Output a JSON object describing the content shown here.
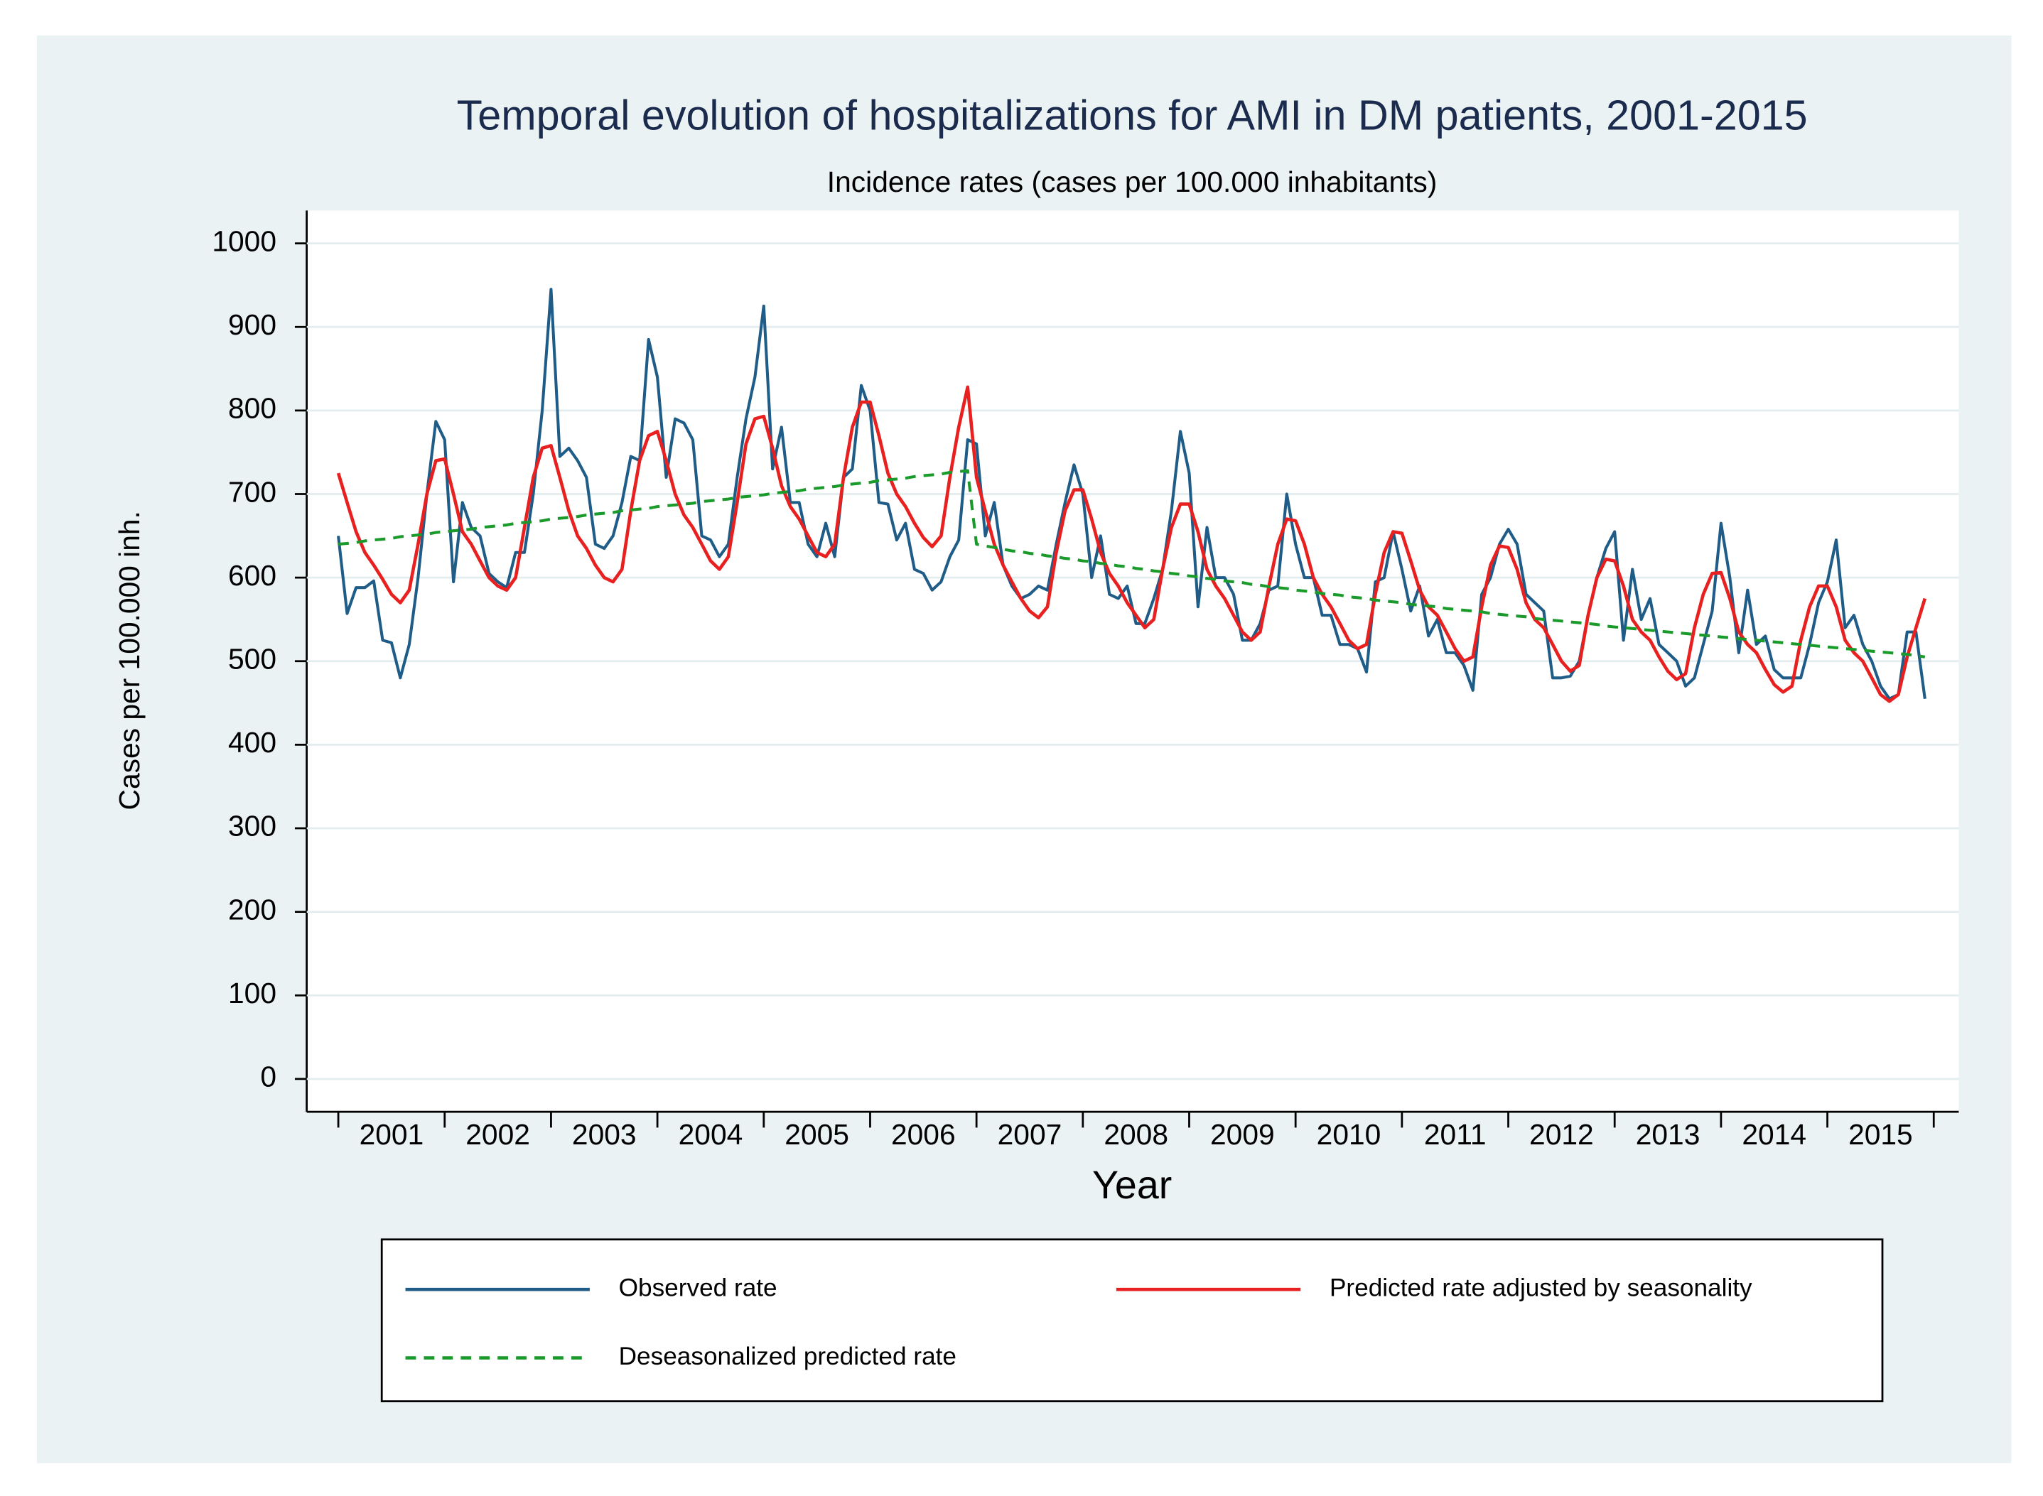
{
  "chart_data": {
    "type": "line",
    "title": "Temporal evolution of hospitalizations for AMI in DM patients, 2001-2015",
    "subtitle": "Incidence rates (cases per 100.000 inhabitants)",
    "x_label": "Year",
    "y_label": "Cases per 100.000 inh.",
    "categories": [
      "2001",
      "2002",
      "2003",
      "2004",
      "2005",
      "2006",
      "2007",
      "2008",
      "2009",
      "2010",
      "2011",
      "2012",
      "2013",
      "2014",
      "2015"
    ],
    "ylim": [
      0,
      1000
    ],
    "yticks": [
      0,
      100,
      200,
      300,
      400,
      500,
      600,
      700,
      800,
      900,
      1000
    ],
    "grid": true,
    "series": [
      {
        "name": "Observed rate",
        "color": "#1f5c87",
        "style": "solid",
        "values": [
          [
            650,
            557,
            588,
            588,
            596,
            525,
            522,
            480,
            520,
            600,
            700,
            787
          ],
          [
            765,
            595,
            690,
            660,
            650,
            605,
            595,
            588,
            630,
            630,
            700,
            800
          ],
          [
            945,
            745,
            755,
            740,
            720,
            640,
            635,
            650,
            690,
            745,
            740,
            885
          ],
          [
            840,
            720,
            790,
            785,
            765,
            650,
            645,
            625,
            640,
            720,
            790,
            840
          ],
          [
            925,
            730,
            780,
            690,
            690,
            640,
            625,
            665,
            625,
            720,
            730,
            830
          ],
          [
            800,
            690,
            688,
            645,
            665,
            610,
            605,
            585,
            595,
            625,
            645,
            765
          ],
          [
            760,
            650,
            690,
            615,
            590,
            575,
            580,
            590,
            585,
            640,
            690,
            735
          ],
          [
            700,
            600,
            650,
            580,
            575,
            590,
            545,
            545,
            575,
            610,
            680,
            775
          ],
          [
            725,
            565,
            660,
            600,
            600,
            580,
            525,
            525,
            545,
            585,
            590,
            700
          ],
          [
            640,
            600,
            600,
            555,
            555,
            520,
            520,
            515,
            487,
            595,
            600,
            655
          ],
          [
            610,
            560,
            590,
            530,
            550,
            510,
            510,
            495,
            465,
            580,
            600,
            640
          ],
          [
            658,
            640,
            580,
            570,
            560,
            480,
            480,
            482,
            500,
            555,
            600,
            635
          ],
          [
            655,
            525,
            610,
            550,
            575,
            520,
            510,
            500,
            470,
            480,
            520,
            560
          ],
          [
            665,
            600,
            510,
            585,
            520,
            530,
            490,
            480,
            480,
            480,
            520,
            570
          ],
          [
            595,
            645,
            540,
            555,
            520,
            500,
            470,
            455,
            460,
            535,
            535,
            455
          ]
        ]
      },
      {
        "name": "Predicted rate adjusted by seasonality",
        "color": "#e8201f",
        "style": "solid",
        "values": [
          [
            725,
            690,
            655,
            630,
            615,
            598,
            580,
            570,
            585,
            640,
            700,
            740
          ],
          [
            742,
            700,
            655,
            640,
            620,
            600,
            590,
            585,
            600,
            660,
            720,
            755
          ],
          [
            758,
            720,
            680,
            650,
            635,
            615,
            600,
            595,
            610,
            680,
            740,
            770
          ],
          [
            775,
            740,
            700,
            675,
            660,
            640,
            620,
            610,
            625,
            690,
            760,
            790
          ],
          [
            793,
            755,
            710,
            685,
            670,
            650,
            630,
            625,
            640,
            720,
            780,
            810
          ],
          [
            810,
            770,
            725,
            700,
            685,
            665,
            648,
            637,
            650,
            720,
            780,
            828
          ],
          [
            720,
            680,
            640,
            615,
            595,
            575,
            560,
            552,
            565,
            630,
            680,
            705
          ],
          [
            705,
            670,
            630,
            605,
            590,
            570,
            555,
            540,
            550,
            610,
            660,
            688
          ],
          [
            688,
            655,
            610,
            590,
            575,
            555,
            535,
            525,
            535,
            590,
            640,
            670
          ],
          [
            668,
            640,
            600,
            580,
            565,
            545,
            525,
            515,
            520,
            580,
            630,
            655
          ],
          [
            653,
            620,
            585,
            565,
            555,
            535,
            515,
            500,
            505,
            565,
            615,
            638
          ],
          [
            636,
            610,
            570,
            550,
            540,
            520,
            500,
            488,
            495,
            555,
            600,
            622
          ],
          [
            620,
            590,
            550,
            535,
            525,
            505,
            488,
            478,
            485,
            540,
            580,
            605
          ],
          [
            606,
            575,
            535,
            520,
            510,
            490,
            472,
            463,
            470,
            525,
            565,
            590
          ],
          [
            590,
            565,
            525,
            510,
            500,
            480,
            460,
            452,
            460,
            505,
            540,
            575
          ]
        ]
      },
      {
        "name": "Deseasonalized predicted rate",
        "color": "#1a9a2a",
        "style": "dashed",
        "values": [
          [
            640,
            641,
            642,
            644,
            645,
            646,
            647,
            649,
            650,
            651,
            652,
            654
          ],
          [
            655,
            656,
            657,
            658,
            660,
            661,
            662,
            663,
            665,
            666,
            667,
            668
          ],
          [
            670,
            671,
            672,
            673,
            675,
            676,
            677,
            678,
            680,
            681,
            682,
            683
          ],
          [
            685,
            686,
            687,
            688,
            689,
            691,
            692,
            693,
            694,
            696,
            697,
            698
          ],
          [
            699,
            701,
            702,
            703,
            704,
            706,
            707,
            708,
            709,
            711,
            712,
            713
          ],
          [
            714,
            716,
            717,
            718,
            719,
            721,
            722,
            723,
            724,
            726,
            727,
            728
          ],
          [
            640,
            638,
            636,
            634,
            632,
            631,
            629,
            628,
            626,
            625,
            623,
            622
          ],
          [
            620,
            619,
            617,
            616,
            614,
            613,
            611,
            610,
            608,
            607,
            605,
            604
          ],
          [
            602,
            601,
            599,
            598,
            596,
            595,
            594,
            592,
            591,
            589,
            588,
            587
          ],
          [
            585,
            584,
            583,
            581,
            580,
            579,
            577,
            576,
            575,
            573,
            572,
            571
          ],
          [
            570,
            568,
            567,
            566,
            565,
            563,
            562,
            561,
            560,
            559,
            557,
            556
          ],
          [
            555,
            554,
            553,
            551,
            550,
            549,
            548,
            547,
            546,
            545,
            544,
            542
          ],
          [
            541,
            540,
            539,
            538,
            537,
            536,
            535,
            534,
            533,
            532,
            531,
            530
          ],
          [
            529,
            528,
            527,
            526,
            525,
            524,
            523,
            522,
            521,
            520,
            519,
            518
          ],
          [
            517,
            516,
            515,
            514,
            513,
            512,
            511,
            510,
            509,
            508,
            507,
            505
          ]
        ]
      }
    ]
  }
}
